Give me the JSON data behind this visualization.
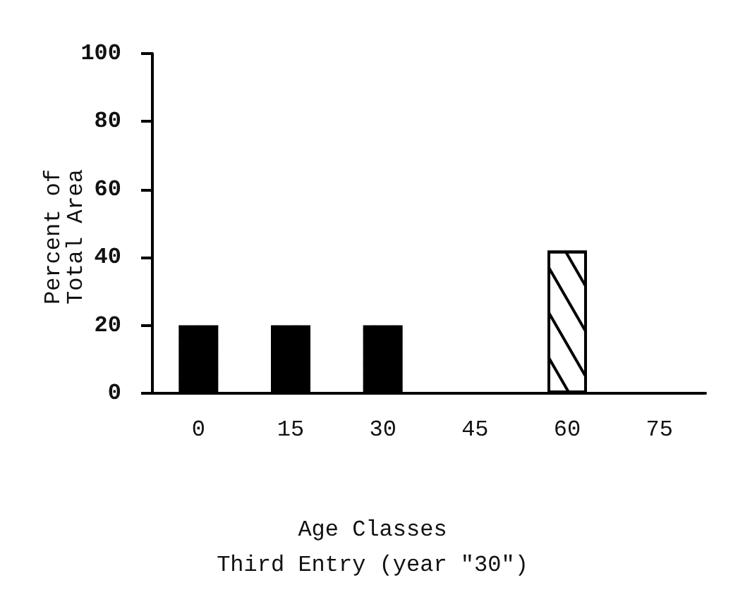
{
  "chart_data": {
    "type": "bar",
    "subtitle": "Third Entry (year \"30\")",
    "xlabel": "Age Classes",
    "ylabel": "Percent of\nTotal Area",
    "categories": [
      "0",
      "15",
      "30",
      "45",
      "60",
      "75"
    ],
    "values": [
      20,
      20,
      20,
      0,
      42,
      0
    ],
    "colors": [
      "#000000",
      "#000000",
      "#000000",
      "#000000",
      "#ffffff",
      "#000000"
    ],
    "ylim": [
      0,
      100
    ],
    "yticks": [
      0,
      20,
      40,
      60,
      80,
      100
    ],
    "grid": false
  }
}
